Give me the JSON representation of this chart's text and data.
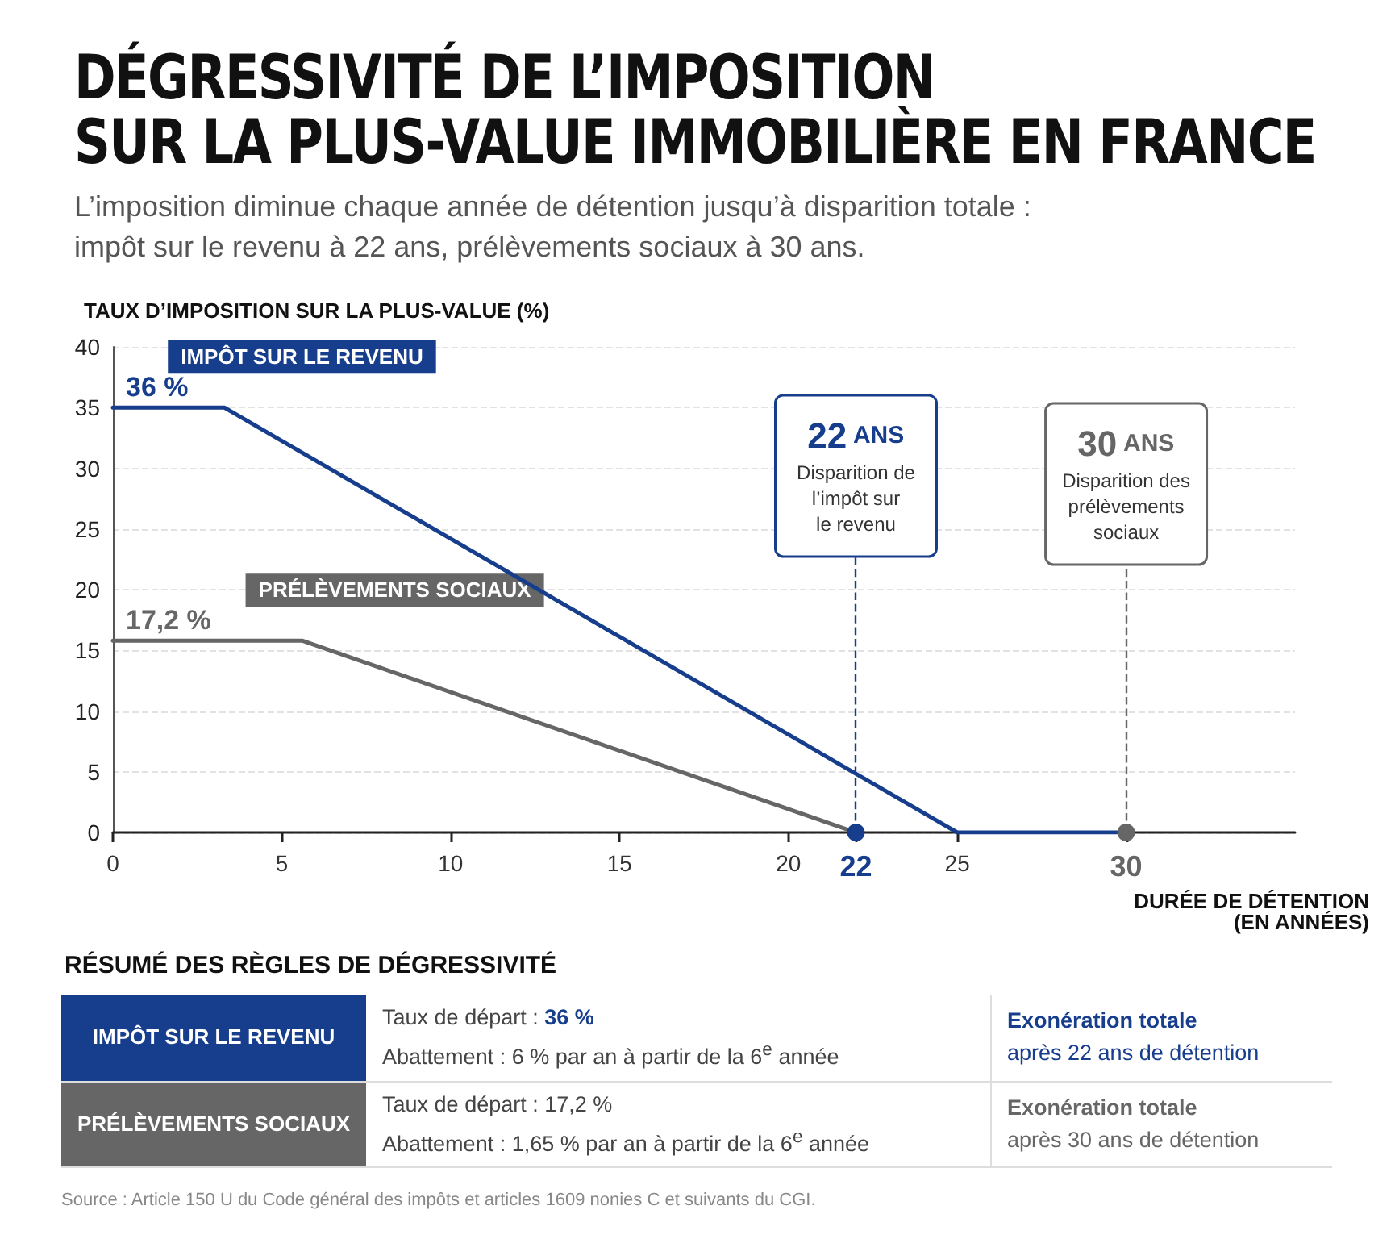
{
  "chart_data": {
    "type": "line",
    "title": "DÉGRESSIVITÉ DE L’IMPOSITION\nSUR LA PLUS-VALUE IMMOBILIÈRE EN FRANCE",
    "subtitle": "L’imposition diminue chaque année de détention jusqu’à disparition totale :\nimpôt sur le revenu à 22 ans, prélèvements sociaux à 30 ans.",
    "ylabel": "TAUX D’IMPOSITION SUR LA PLUS-VALUE (%)",
    "xlabel": "DURÉE DE DÉTENTION\n(EN ANNÉES)",
    "series": [
      {
        "name": "IMPÔT SUR LE REVENU",
        "color": "#173e8c",
        "x": [
          0,
          3.3,
          25,
          30
        ],
        "values": [
          35,
          35,
          0,
          0
        ]
      },
      {
        "name": "PRÉLÈVEMENTS SOCIAUX",
        "color": "#666666",
        "x": [
          0,
          5.6,
          22
        ],
        "values": [
          15.8,
          15.8,
          0
        ]
      }
    ],
    "xlim": [
      0,
      35
    ],
    "xticks": [
      0,
      5,
      10,
      15,
      20,
      22,
      25,
      30
    ],
    "ylim": [
      0,
      40
    ],
    "yticks": [
      0,
      5,
      10,
      15,
      20,
      25,
      30,
      35,
      40
    ],
    "grid": "y",
    "legend": false,
    "marker": "none",
    "line_style": "solid",
    "ref_lines": [
      {
        "axis": "x",
        "value": 22,
        "label": "22 ANS\nDisparition de\nl’impôt sur\nle revenu",
        "color": "#173e8c",
        "line_style": "dashed"
      },
      {
        "axis": "x",
        "value": 30,
        "label": "30 ANS\nDisparition des\nprélèvements\nsociaux",
        "color": "#666666",
        "line_style": "dashed"
      }
    ],
    "annotations": [
      {
        "text": "36 %",
        "x": 0,
        "y": 35
      },
      {
        "text": "17,2 %",
        "x": 0,
        "y": 15.8
      },
      "RÉSUMÉ DES RÈGLES DE DÉGRESSIVITÉ",
      "Taux de départ : 36 %",
      "Abattement : 6 % par an à partir de la 6$^{e}$ année",
      "Exonération totale",
      "après 22 ans de détention",
      "Taux de départ : 17,2 %",
      "Abattement : 1,65 % par an à partir de la 6$^{e}$ année",
      "Exonération totale",
      "après 30 ans de détention",
      "Source : Article 150 U du Code général des impôts et articles 1609 nonies C et suivants du CGI."
    ]
  }
}
